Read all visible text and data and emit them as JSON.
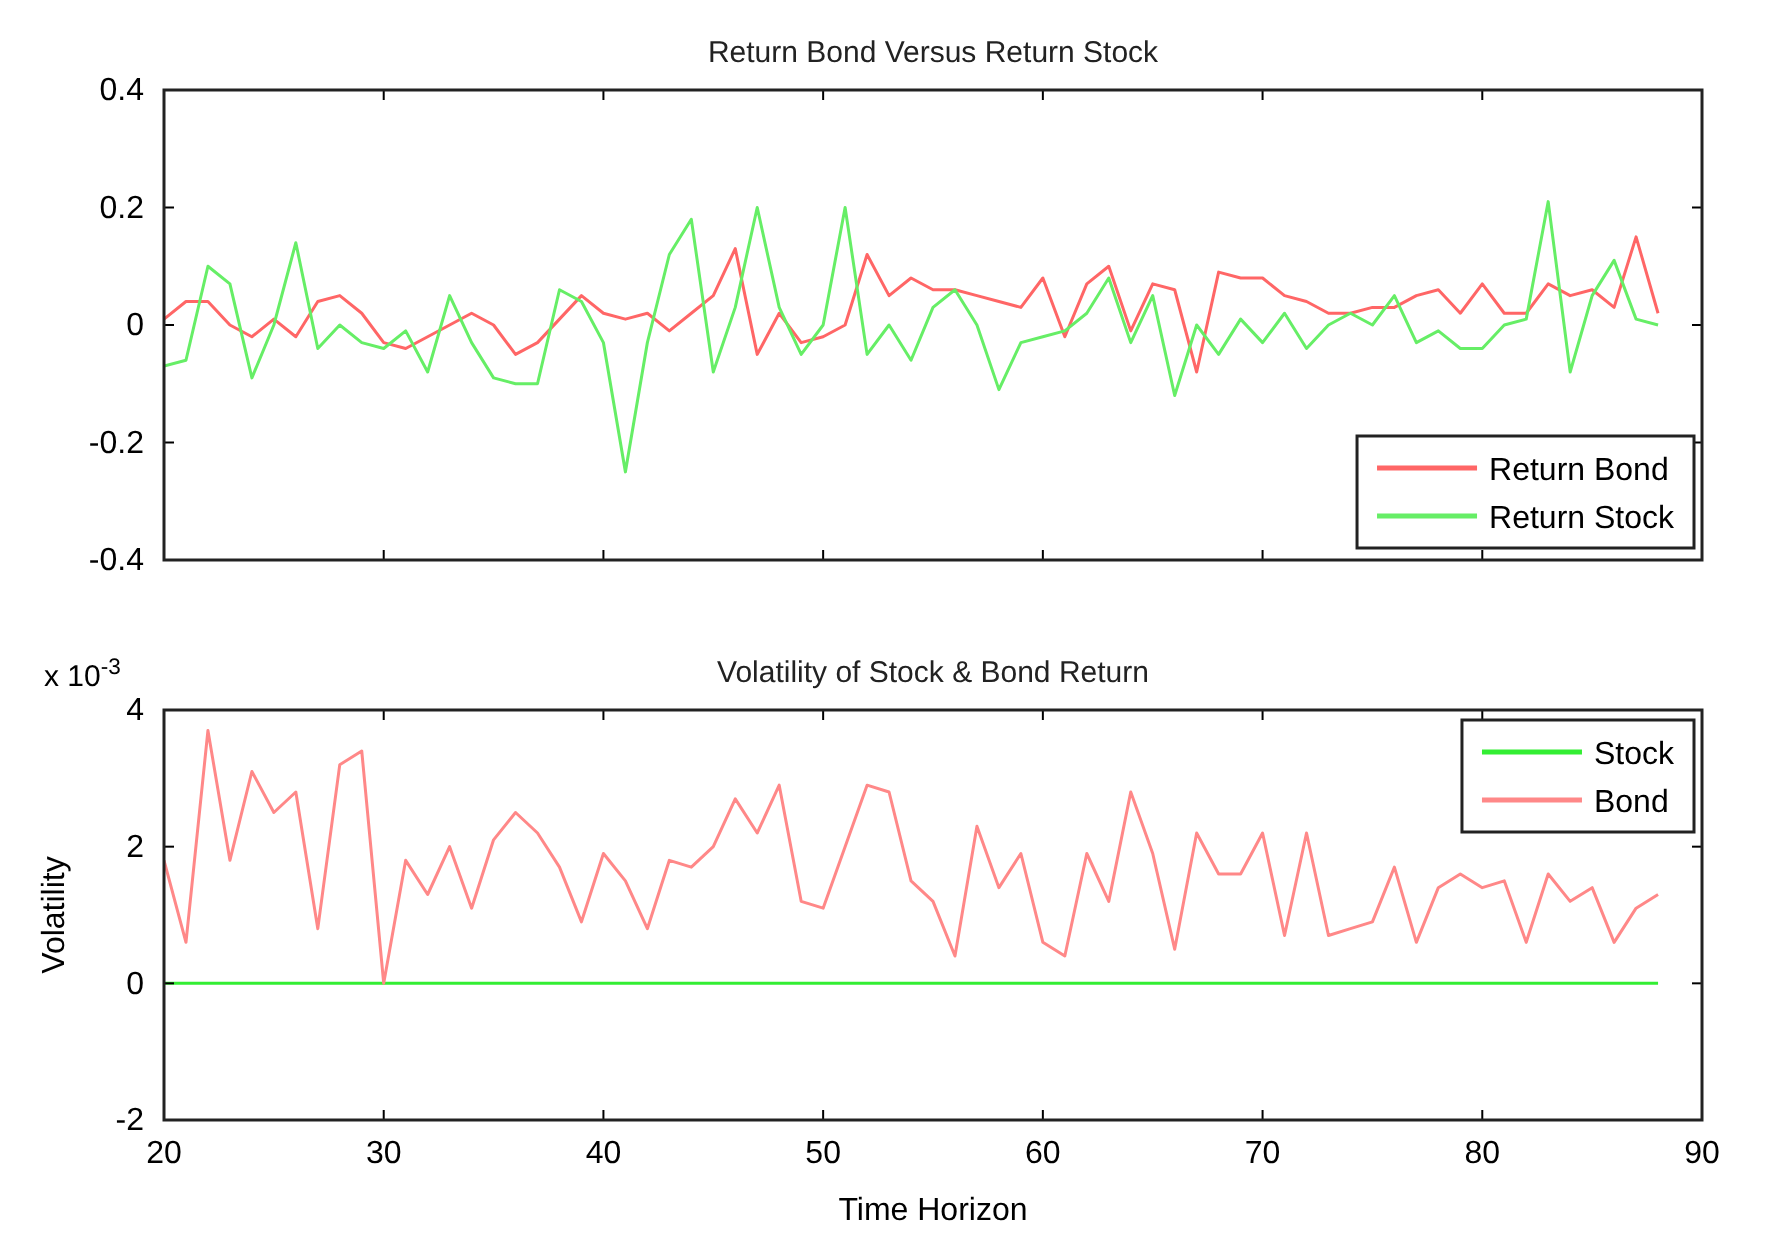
{
  "chart_data": [
    {
      "type": "line",
      "title": "Return Bond Versus Return Stock",
      "legend": "bottom right",
      "tick_labels": "y",
      "x": [
        20,
        21,
        22,
        23,
        24,
        25,
        26,
        27,
        28,
        29,
        30,
        31,
        32,
        33,
        34,
        35,
        36,
        37,
        38,
        39,
        40,
        41,
        42,
        43,
        44,
        45,
        46,
        47,
        48,
        49,
        50,
        51,
        52,
        53,
        54,
        55,
        56,
        57,
        58,
        59,
        60,
        61,
        62,
        63,
        64,
        65,
        66,
        67,
        68,
        69,
        70,
        71,
        72,
        73,
        74,
        75,
        76,
        77,
        78,
        79,
        80,
        81,
        82,
        83,
        84,
        85,
        86,
        87,
        88
      ],
      "xlim": [
        20,
        90
      ],
      "xticks": [
        20,
        30,
        40,
        50,
        60,
        70,
        80,
        90
      ],
      "ylim": [
        -0.4,
        0.4
      ],
      "yticks": [
        -0.4,
        -0.2,
        0,
        0.2,
        0.4
      ],
      "series": [
        {
          "name": "Return Bond",
          "color": "#ff6666",
          "values": [
            0.01,
            0.04,
            0.04,
            0.0,
            -0.02,
            0.01,
            -0.02,
            0.04,
            0.05,
            0.02,
            -0.03,
            -0.04,
            -0.02,
            0.0,
            0.02,
            0.0,
            -0.05,
            -0.03,
            0.01,
            0.05,
            0.02,
            0.01,
            0.02,
            -0.01,
            0.02,
            0.05,
            0.13,
            -0.05,
            0.02,
            -0.03,
            -0.02,
            0.0,
            0.12,
            0.05,
            0.08,
            0.06,
            0.06,
            0.05,
            0.04,
            0.03,
            0.08,
            -0.02,
            0.07,
            0.1,
            -0.01,
            0.07,
            0.06,
            -0.08,
            0.09,
            0.08,
            0.08,
            0.05,
            0.04,
            0.02,
            0.02,
            0.03,
            0.03,
            0.05,
            0.06,
            0.02,
            0.07,
            0.02,
            0.02,
            0.07,
            0.05,
            0.06,
            0.03,
            0.15,
            0.02
          ]
        },
        {
          "name": "Return Stock",
          "color": "#66ee66",
          "values": [
            -0.07,
            -0.06,
            0.1,
            0.07,
            -0.09,
            0.0,
            0.14,
            -0.04,
            0.0,
            -0.03,
            -0.04,
            -0.01,
            -0.08,
            0.05,
            -0.03,
            -0.09,
            -0.1,
            -0.1,
            0.06,
            0.04,
            -0.03,
            -0.25,
            -0.03,
            0.12,
            0.18,
            -0.08,
            0.03,
            0.2,
            0.03,
            -0.05,
            0.0,
            0.2,
            -0.05,
            0.0,
            -0.06,
            0.03,
            0.06,
            0.0,
            -0.11,
            -0.03,
            -0.02,
            -0.01,
            0.02,
            0.08,
            -0.03,
            0.05,
            -0.12,
            0.0,
            -0.05,
            0.01,
            -0.03,
            0.02,
            -0.04,
            0.0,
            0.02,
            0.0,
            0.05,
            -0.03,
            -0.01,
            -0.04,
            -0.04,
            0.0,
            0.01,
            0.21,
            -0.08,
            0.05,
            0.11,
            0.01,
            0.0
          ]
        }
      ]
    },
    {
      "type": "line",
      "title": "Volatility of Stock & Bond Return",
      "xlabel": "Time Horizon",
      "ylabel": "Volatility",
      "legend": "top right",
      "annotations": [
        "x 10$^{-3}$"
      ],
      "x": [
        20,
        21,
        22,
        23,
        24,
        25,
        26,
        27,
        28,
        29,
        30,
        31,
        32,
        33,
        34,
        35,
        36,
        37,
        38,
        39,
        40,
        41,
        42,
        43,
        44,
        45,
        46,
        47,
        48,
        49,
        50,
        51,
        52,
        53,
        54,
        55,
        56,
        57,
        58,
        59,
        60,
        61,
        62,
        63,
        64,
        65,
        66,
        67,
        68,
        69,
        70,
        71,
        72,
        73,
        74,
        75,
        76,
        77,
        78,
        79,
        80,
        81,
        82,
        83,
        84,
        85,
        86,
        87,
        88
      ],
      "xlim": [
        20,
        90
      ],
      "xticks": [
        20,
        30,
        40,
        50,
        60,
        70,
        80,
        90
      ],
      "ylim": [
        -2,
        4
      ],
      "yticks": [
        -2,
        0,
        2,
        4
      ],
      "series": [
        {
          "name": "Stock",
          "color": "#33ee33",
          "values": [
            0,
            0,
            0,
            0,
            0,
            0,
            0,
            0,
            0,
            0,
            0,
            0,
            0,
            0,
            0,
            0,
            0,
            0,
            0,
            0,
            0,
            0,
            0,
            0,
            0,
            0,
            0,
            0,
            0,
            0,
            0,
            0,
            0,
            0,
            0,
            0,
            0,
            0,
            0,
            0,
            0,
            0,
            0,
            0,
            0,
            0,
            0,
            0,
            0,
            0,
            0,
            0,
            0,
            0,
            0,
            0,
            0,
            0,
            0,
            0,
            0,
            0,
            0,
            0,
            0,
            0,
            0,
            0,
            0
          ]
        },
        {
          "name": "Bond",
          "color": "#ff8888",
          "values": [
            1.8,
            0.6,
            3.7,
            1.8,
            3.1,
            2.5,
            2.8,
            0.8,
            3.2,
            3.4,
            0.0,
            1.8,
            1.3,
            2.0,
            1.1,
            2.1,
            2.5,
            2.2,
            1.7,
            0.9,
            1.9,
            1.5,
            0.8,
            1.8,
            1.7,
            2.0,
            2.7,
            2.2,
            2.9,
            1.2,
            1.1,
            2.0,
            2.9,
            2.8,
            1.5,
            1.2,
            0.4,
            2.3,
            1.4,
            1.9,
            0.6,
            0.4,
            1.9,
            1.2,
            2.8,
            1.9,
            0.5,
            2.2,
            1.6,
            1.6,
            2.2,
            0.7,
            2.2,
            0.7,
            0.8,
            0.9,
            1.7,
            0.6,
            1.4,
            1.6,
            1.4,
            1.5,
            0.6,
            1.6,
            1.2,
            1.4,
            0.6,
            1.1,
            1.3
          ]
        }
      ]
    }
  ]
}
